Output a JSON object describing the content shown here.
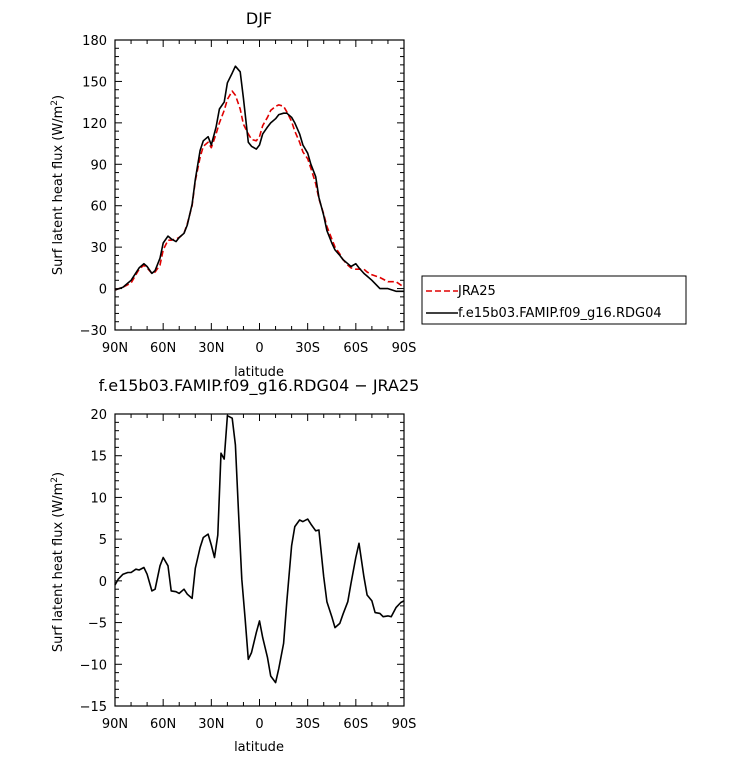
{
  "chart_data": [
    {
      "type": "line",
      "title": "DJF",
      "xlabel": "latitude",
      "ylabel": "Surf latent heat flux (W/m²)",
      "xlim": [
        90,
        -90
      ],
      "ylim": [
        -30,
        180
      ],
      "x_ticks": [
        {
          "value": 90,
          "label": "90N"
        },
        {
          "value": 60,
          "label": "60N"
        },
        {
          "value": 30,
          "label": "30N"
        },
        {
          "value": 0,
          "label": "0"
        },
        {
          "value": -30,
          "label": "30S"
        },
        {
          "value": -60,
          "label": "60S"
        },
        {
          "value": -90,
          "label": "90S"
        }
      ],
      "y_ticks": [
        -30,
        0,
        30,
        60,
        90,
        120,
        150,
        180
      ],
      "legend": {
        "placement": "right",
        "entries": [
          "JRA25",
          "f.e15b03.FAMIP.f09_g16.RDG04"
        ]
      },
      "series": [
        {
          "name": "JRA25",
          "color": "#e00000",
          "dash": true,
          "x": [
            90,
            85,
            80,
            75,
            72,
            70,
            67,
            65,
            62,
            60,
            57,
            55,
            52,
            50,
            47,
            45,
            42,
            40,
            37,
            35,
            32,
            30,
            27,
            25,
            22,
            20,
            17,
            15,
            12,
            10,
            7,
            5,
            2,
            0,
            -2,
            -5,
            -7,
            -10,
            -12,
            -15,
            -17,
            -20,
            -22,
            -25,
            -27,
            -30,
            -32,
            -35,
            -37,
            -40,
            -42,
            -45,
            -47,
            -50,
            -52,
            -55,
            -57,
            -60,
            -62,
            -65,
            -67,
            -70,
            -75,
            -80,
            -85,
            -90
          ],
          "y": [
            -1,
            1,
            4,
            14,
            17,
            15,
            11,
            12,
            17,
            28,
            35,
            35,
            36,
            37,
            40,
            47,
            60,
            78,
            95,
            103,
            106,
            102,
            112,
            120,
            129,
            137,
            143,
            140,
            130,
            119,
            112,
            108,
            107,
            110,
            118,
            124,
            129,
            132,
            133,
            132,
            128,
            121,
            114,
            106,
            99,
            94,
            87,
            76,
            65,
            54,
            45,
            36,
            30,
            25,
            21,
            17,
            15,
            14,
            14,
            14,
            12,
            10,
            8,
            5,
            5,
            1
          ]
        },
        {
          "name": "f.e15b03.FAMIP.f09_g16.RDG04",
          "color": "#000000",
          "dash": false,
          "x": [
            90,
            85,
            80,
            75,
            72,
            70,
            67,
            65,
            62,
            60,
            57,
            55,
            52,
            50,
            47,
            45,
            42,
            40,
            37,
            35,
            32,
            30,
            27,
            25,
            22,
            20,
            17,
            15,
            12,
            10,
            7,
            5,
            2,
            0,
            -2,
            -5,
            -7,
            -10,
            -12,
            -15,
            -17,
            -20,
            -22,
            -25,
            -27,
            -30,
            -32,
            -35,
            -37,
            -40,
            -42,
            -45,
            -47,
            -50,
            -52,
            -55,
            -57,
            -60,
            -62,
            -65,
            -67,
            -70,
            -75,
            -80,
            -85,
            -90
          ],
          "y": [
            -1,
            1,
            6,
            15,
            18,
            16,
            11,
            13,
            22,
            33,
            38,
            36,
            34,
            37,
            40,
            46,
            61,
            79,
            100,
            107,
            110,
            104,
            117,
            130,
            135,
            149,
            156,
            161,
            157,
            138,
            106,
            103,
            101,
            104,
            112,
            117,
            120,
            123,
            126,
            127,
            127,
            124,
            120,
            112,
            104,
            98,
            90,
            81,
            66,
            53,
            42,
            33,
            28,
            24,
            21,
            18,
            16,
            18,
            15,
            11,
            9,
            6,
            0,
            0,
            -2,
            -2
          ]
        }
      ]
    },
    {
      "type": "line",
      "title": "f.e15b03.FAMIP.f09_g16.RDG04 − JRA25",
      "xlabel": "latitude",
      "ylabel": "Surf latent heat flux (W/m²)",
      "xlim": [
        90,
        -90
      ],
      "ylim": [
        -15,
        20
      ],
      "x_ticks": [
        {
          "value": 90,
          "label": "90N"
        },
        {
          "value": 60,
          "label": "60N"
        },
        {
          "value": 30,
          "label": "30N"
        },
        {
          "value": 0,
          "label": "0"
        },
        {
          "value": -30,
          "label": "30S"
        },
        {
          "value": -60,
          "label": "60S"
        },
        {
          "value": -90,
          "label": "90S"
        }
      ],
      "y_ticks": [
        -15,
        -10,
        -5,
        0,
        5,
        10,
        15,
        20
      ],
      "series": [
        {
          "color": "#000000",
          "dash": false,
          "x": [
            90,
            88,
            85,
            82,
            80,
            77,
            75,
            72,
            70,
            67,
            65,
            62,
            60,
            57,
            55,
            52,
            50,
            47,
            45,
            42,
            40,
            37,
            35,
            32,
            30,
            28,
            26,
            24,
            22,
            20,
            17,
            15,
            13,
            11,
            9,
            7,
            5,
            2,
            0,
            -2,
            -5,
            -7,
            -10,
            -12,
            -15,
            -17,
            -20,
            -22,
            -25,
            -27,
            -30,
            -32,
            -35,
            -37,
            -40,
            -42,
            -45,
            -47,
            -50,
            -52,
            -55,
            -57,
            -60,
            -62,
            -65,
            -67,
            -70,
            -72,
            -75,
            -77,
            -80,
            -82,
            -85,
            -88,
            -90
          ],
          "y": [
            -0.5,
            0.2,
            0.8,
            1.0,
            1.0,
            1.4,
            1.3,
            1.6,
            0.8,
            -1.2,
            -1.0,
            1.8,
            2.8,
            1.8,
            -1.2,
            -1.3,
            -1.5,
            -1.0,
            -1.6,
            -2.1,
            1.5,
            4.0,
            5.2,
            5.6,
            4.3,
            2.8,
            5.5,
            15.3,
            14.6,
            19.8,
            19.5,
            16.3,
            8.0,
            0.2,
            -4.5,
            -9.4,
            -8.6,
            -6.2,
            -4.8,
            -6.8,
            -9.2,
            -11.4,
            -12.2,
            -10.5,
            -7.5,
            -2.5,
            4.2,
            6.5,
            7.3,
            7.1,
            7.4,
            6.8,
            6.0,
            6.1,
            0.5,
            -2.5,
            -4.3,
            -5.6,
            -5.1,
            -4.0,
            -2.5,
            -0.3,
            2.8,
            4.5,
            0.5,
            -1.7,
            -2.4,
            -3.8,
            -3.9,
            -4.3,
            -4.2,
            -4.3,
            -3.2,
            -2.6,
            -2.4
          ]
        }
      ]
    }
  ]
}
